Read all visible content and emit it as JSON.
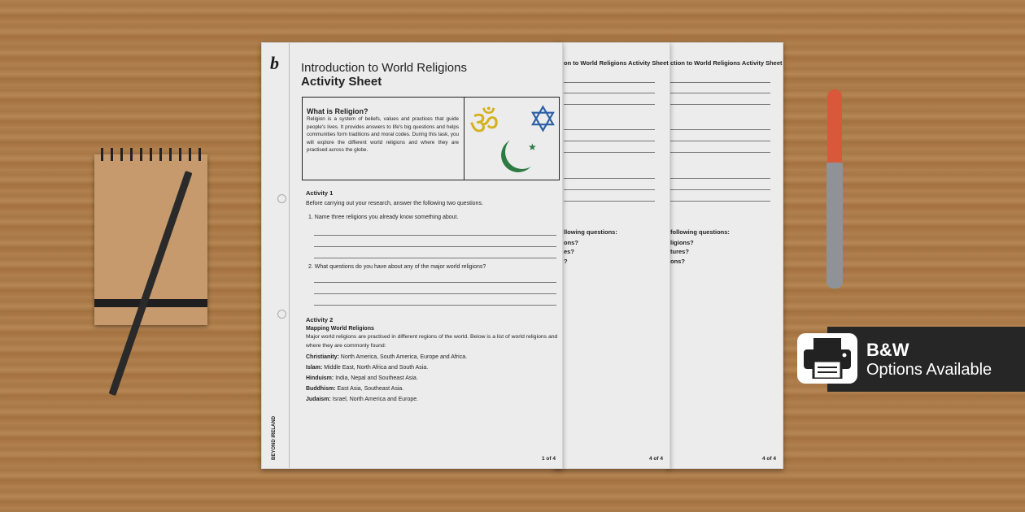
{
  "sheet": {
    "title_line1": "Introduction to World Religions",
    "title_line2": "Activity Sheet",
    "brand_vertical": "BEYOND IRELAND",
    "box_heading": "What is Religion?",
    "box_text": "Religion is a system of beliefs, values and practices that guide people's lives. It provides answers to life's big questions and helps communities form traditions and moral codes. During this task, you will explore the different world religions and where they are practised across the globe.",
    "activity1_heading": "Activity 1",
    "activity1_intro": "Before carrying out your research, answer the following two questions.",
    "q1": "1.  Name three religions you already know something about.",
    "q2": "2.  What questions do you have about any of the major world religions?",
    "activity2_heading": "Activity 2",
    "activity2_sub": "Mapping World Religions",
    "activity2_intro": "Major world religions are practised in different regions of the world. Below is a list of world religions and where they are commonly found:",
    "regions": [
      {
        "name": "Christianity:",
        "places": "North America, South America, Europe and Africa."
      },
      {
        "name": "Islam:",
        "places": "Middle East, North Africa and South Asia."
      },
      {
        "name": "Hinduism:",
        "places": "India, Nepal and Southeast Asia."
      },
      {
        "name": "Buddhism:",
        "places": "East Asia, Southeast Asia."
      },
      {
        "name": "Judaism:",
        "places": "Israel, North America and Europe."
      }
    ],
    "page_number": "1 of 4",
    "symbols": [
      "om-icon",
      "star-of-david-icon",
      "crescent-star-icon"
    ]
  },
  "back_pages": [
    {
      "header": "on to World Religions Activity Sheet",
      "q_lines": [
        "llowing questions:",
        "ons?",
        "es?",
        "?"
      ],
      "page_number": "4 of 4"
    },
    {
      "header": "ction to World Religions Activity Sheet",
      "q_lines": [
        "following questions:",
        "ligions?",
        "tures?",
        "ons?"
      ],
      "page_number": "4 of 4"
    }
  ],
  "badge": {
    "line1": "B&W",
    "line2": "Options Available",
    "icon": "printer-icon"
  },
  "colors": {
    "om": "#d4b21f",
    "star": "#2b5fa6",
    "crescent": "#2e7a43",
    "badge_bg": "#262626"
  }
}
